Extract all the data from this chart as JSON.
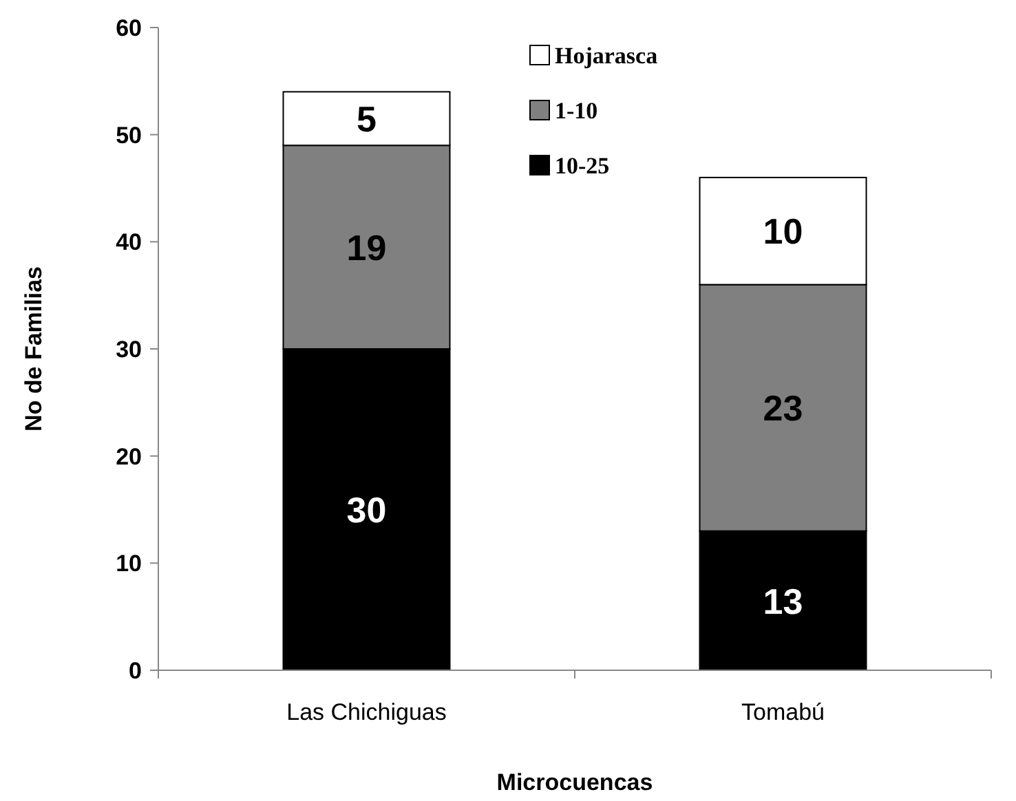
{
  "chart_data": {
    "type": "bar",
    "stacked": true,
    "xlabel": "Microcuencas",
    "ylabel": "No de Familias",
    "categories": [
      "Las Chichiguas",
      "Tomabú"
    ],
    "series": [
      {
        "name": "10-25",
        "color": "#000000",
        "values": [
          30,
          13
        ]
      },
      {
        "name": "1-10",
        "color": "#808080",
        "values": [
          19,
          23
        ]
      },
      {
        "name": "Hojarasca",
        "color": "#ffffff",
        "values": [
          5,
          10
        ]
      }
    ],
    "ylim": [
      0,
      60
    ],
    "yticks": [
      0,
      10,
      20,
      30,
      40,
      50,
      60
    ],
    "data_labels": true,
    "legend": "top right",
    "grid": false
  }
}
